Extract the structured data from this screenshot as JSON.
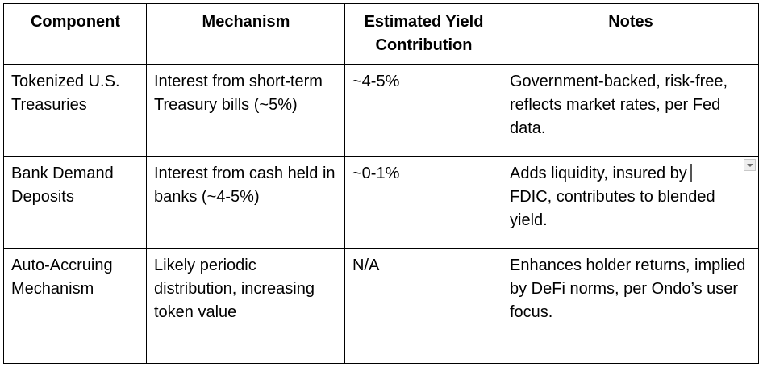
{
  "table": {
    "headers": [
      "Component",
      "Mechanism",
      "Estimated Yield Contribution",
      "Notes"
    ],
    "rows": [
      {
        "component": "Tokenized U.S. Treasuries",
        "mechanism": "Interest from short-term Treasury bills (~5%)",
        "yield": "~4-5%",
        "notes": "Government-backed, risk-free, reflects market rates, per Fed data."
      },
      {
        "component": "Bank Demand Deposits",
        "mechanism": "Interest from cash held in banks (~4-5%)",
        "yield": "~0-1%",
        "notes_line1": "Adds liquidity, insured by",
        "notes_line2": "FDIC, contributes to blended yield."
      },
      {
        "component": "Auto-Accruing Mechanism",
        "mechanism": "Likely periodic distribution, increasing token value",
        "yield": "N/A",
        "notes": "Enhances holder returns, implied by DeFi norms, per Ondo’s user focus."
      }
    ]
  },
  "icons": {
    "cell_menu": "dropdown-arrow-icon"
  }
}
